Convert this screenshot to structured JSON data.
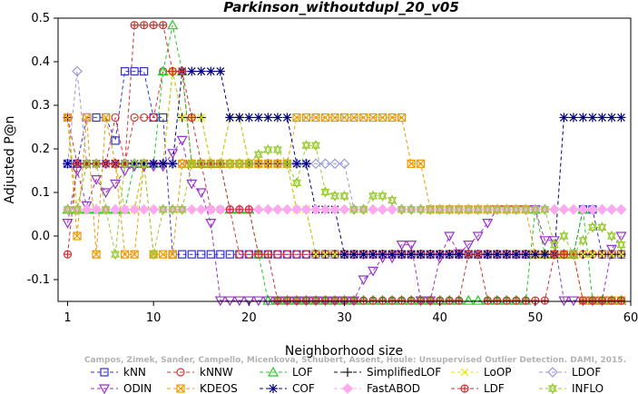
{
  "chart_data": {
    "type": "line",
    "title": "Parkinson_withoutdupl_20_v05",
    "xlabel": "Neighborhood size",
    "ylabel": "Adjusted P@n",
    "xlim": [
      0,
      60
    ],
    "ylim": [
      -0.15,
      0.5
    ],
    "xticks": [
      1,
      10,
      20,
      30,
      40,
      50,
      60
    ],
    "yticks": [
      -0.1,
      0.0,
      0.1,
      0.2,
      0.3,
      0.4,
      0.5
    ],
    "ytick_labels": [
      "-0.1",
      "0.0",
      "0.1",
      "0.2",
      "0.3",
      "0.4",
      "0.5"
    ],
    "grid": false,
    "legend_position": "bottom",
    "credit": "Campos, Zimek, Sander, Campello, Micenkova, Schubert, Assent, Houle: Unsupervised Outlier Detection. DAMI, 2015.",
    "x": [
      1,
      2,
      3,
      4,
      5,
      6,
      7,
      8,
      9,
      10,
      11,
      12,
      13,
      14,
      15,
      16,
      17,
      18,
      19,
      20,
      21,
      22,
      23,
      24,
      25,
      26,
      27,
      28,
      29,
      30,
      31,
      32,
      33,
      34,
      35,
      36,
      37,
      38,
      39,
      40,
      41,
      42,
      43,
      44,
      45,
      46,
      47,
      48,
      49,
      50,
      51,
      52,
      53,
      54,
      55,
      56,
      57,
      58,
      59
    ],
    "series": [
      {
        "name": "kNN",
        "color": "#3333cc",
        "marker": "square",
        "values": [
          0.166,
          0.166,
          0.272,
          0.272,
          0.272,
          0.219,
          0.378,
          0.378,
          0.378,
          0.272,
          0.272,
          -0.042,
          -0.042,
          -0.042,
          -0.042,
          -0.042,
          -0.042,
          -0.042,
          -0.042,
          -0.042,
          -0.042,
          -0.042,
          -0.042,
          -0.042,
          -0.042,
          -0.042,
          -0.042,
          -0.042,
          -0.042,
          -0.042,
          -0.042,
          -0.042,
          -0.042,
          -0.042,
          -0.042,
          -0.042,
          -0.042,
          -0.042,
          -0.042,
          -0.042,
          -0.042,
          -0.042,
          -0.042,
          -0.042,
          -0.042,
          -0.042,
          -0.042,
          -0.042,
          -0.042,
          -0.042,
          -0.042,
          -0.042,
          -0.042,
          -0.042,
          0.061,
          0.061,
          -0.042,
          -0.042,
          -0.042
        ]
      },
      {
        "name": "kNNW",
        "color": "#dd3333",
        "marker": "circle",
        "values": [
          0.272,
          0.166,
          0.166,
          0.166,
          0.166,
          0.272,
          0.166,
          0.272,
          0.272,
          0.272,
          0.378,
          0.378,
          0.378,
          0.166,
          0.166,
          0.061,
          0.061,
          0.061,
          -0.042,
          -0.042,
          -0.042,
          -0.042,
          -0.042,
          -0.042,
          -0.042,
          -0.042,
          -0.042,
          -0.042,
          -0.042,
          -0.042,
          -0.042,
          -0.042,
          -0.042,
          -0.042,
          -0.042,
          -0.042,
          -0.042,
          -0.042,
          -0.042,
          -0.042,
          -0.042,
          -0.042,
          -0.042,
          -0.042,
          -0.042,
          -0.042,
          -0.042,
          -0.042,
          -0.042,
          -0.042,
          -0.042,
          -0.042,
          -0.042,
          -0.042,
          -0.042,
          -0.042,
          -0.042,
          -0.042,
          -0.042
        ]
      },
      {
        "name": "LOF",
        "color": "#22cc22",
        "marker": "triangle",
        "values": [
          0.061,
          0.061,
          0.061,
          0.061,
          0.061,
          0.061,
          0.061,
          0.166,
          0.166,
          0.166,
          0.378,
          0.484,
          0.378,
          0.166,
          0.166,
          0.166,
          0.166,
          0.061,
          0.061,
          0.061,
          -0.042,
          -0.148,
          -0.148,
          -0.148,
          -0.148,
          -0.148,
          -0.148,
          -0.148,
          -0.148,
          -0.148,
          -0.148,
          -0.148,
          -0.148,
          -0.148,
          -0.148,
          -0.148,
          -0.148,
          -0.148,
          -0.148,
          -0.148,
          -0.148,
          -0.148,
          -0.148,
          -0.148,
          -0.148,
          -0.148,
          -0.148,
          -0.148,
          -0.148,
          0.061,
          -0.042,
          -0.042,
          -0.042,
          -0.042,
          0.061,
          -0.148,
          -0.148,
          -0.148,
          -0.148
        ]
      },
      {
        "name": "SimplifiedLOF",
        "color": "#111111",
        "marker": "plus",
        "values": [
          0.272,
          0.061,
          0.166,
          0.166,
          0.166,
          0.166,
          0.061,
          0.061,
          0.166,
          0.166,
          0.166,
          0.378,
          0.272,
          0.272,
          0.272,
          0.166,
          0.166,
          0.272,
          0.272,
          0.166,
          0.166,
          0.166,
          0.166,
          0.166,
          0.061,
          0.061,
          -0.042,
          -0.042,
          -0.042,
          -0.042,
          -0.042,
          -0.042,
          -0.042,
          -0.042,
          -0.042,
          -0.042,
          -0.042,
          -0.042,
          -0.042,
          -0.042,
          -0.042,
          -0.042,
          -0.042,
          -0.042,
          -0.042,
          -0.042,
          -0.042,
          -0.042,
          -0.042,
          -0.042,
          -0.042,
          -0.042,
          -0.042,
          -0.042,
          -0.042,
          -0.042,
          -0.042,
          -0.042,
          -0.042
        ]
      },
      {
        "name": "LoOP",
        "color": "#e6e600",
        "marker": "x",
        "values": [
          0.272,
          0.061,
          0.166,
          0.166,
          0.166,
          0.166,
          0.061,
          0.061,
          0.166,
          0.166,
          0.166,
          0.378,
          0.272,
          0.272,
          0.272,
          0.166,
          0.166,
          0.272,
          0.272,
          0.166,
          0.166,
          0.166,
          0.166,
          0.166,
          0.061,
          0.061,
          -0.042,
          -0.042,
          -0.042,
          -0.042,
          -0.042,
          -0.042,
          -0.042,
          -0.042,
          -0.042,
          -0.042,
          -0.042,
          -0.042,
          -0.042,
          -0.042,
          -0.042,
          -0.042,
          -0.042,
          -0.042,
          -0.042,
          -0.042,
          -0.042,
          -0.042,
          -0.042,
          -0.042,
          -0.042,
          -0.042,
          -0.042,
          -0.042,
          -0.042,
          -0.042,
          -0.042,
          -0.042,
          -0.042
        ]
      },
      {
        "name": "LDOF",
        "color": "#9999dd",
        "marker": "diamond",
        "values": [
          0.166,
          0.378,
          0.166,
          0.166,
          0.166,
          0.166,
          0.166,
          0.166,
          0.166,
          0.166,
          0.166,
          0.166,
          0.166,
          0.166,
          0.166,
          0.166,
          0.166,
          0.166,
          0.166,
          0.166,
          0.166,
          0.166,
          0.166,
          0.166,
          0.166,
          0.166,
          0.166,
          0.166,
          0.166,
          0.166,
          0.061,
          0.061,
          0.061,
          0.061,
          0.061,
          0.061,
          0.061,
          0.061,
          0.061,
          0.061,
          0.061,
          0.061,
          0.061,
          0.061,
          0.061,
          0.061,
          0.061,
          0.061,
          0.061,
          0.061,
          0.061,
          0.061,
          0.061,
          0.061,
          0.061,
          0.061,
          0.061,
          0.061,
          0.061
        ]
      },
      {
        "name": "ODIN",
        "color": "#9933cc",
        "marker": "triangle-down",
        "values": [
          0.03,
          0.15,
          0.07,
          0.13,
          0.1,
          0.12,
          0.15,
          0.16,
          0.16,
          0.16,
          0.16,
          0.19,
          0.22,
          0.12,
          0.1,
          0.03,
          -0.148,
          -0.148,
          -0.148,
          -0.148,
          -0.148,
          -0.148,
          -0.148,
          -0.148,
          -0.148,
          -0.148,
          -0.148,
          -0.148,
          -0.148,
          -0.148,
          -0.148,
          -0.1,
          -0.08,
          -0.05,
          -0.05,
          -0.02,
          -0.02,
          -0.148,
          -0.148,
          -0.05,
          0.0,
          -0.04,
          -0.02,
          0.0,
          0.03,
          0.061,
          0.061,
          0.061,
          0.061,
          0.061,
          -0.01,
          -0.01,
          -0.148,
          -0.148,
          -0.148,
          -0.148,
          -0.148,
          -0.03,
          0.0
        ]
      },
      {
        "name": "KDEOS",
        "color": "#ee9900",
        "marker": "square-x",
        "values": [
          0.272,
          0.0,
          0.272,
          -0.042,
          0.272,
          0.166,
          -0.042,
          -0.042,
          0.166,
          -0.042,
          -0.042,
          -0.042,
          0.166,
          0.166,
          0.166,
          0.166,
          0.166,
          0.166,
          0.166,
          0.166,
          0.166,
          0.166,
          0.166,
          0.166,
          0.272,
          0.272,
          0.272,
          0.272,
          0.272,
          0.272,
          0.272,
          0.272,
          0.272,
          0.272,
          0.272,
          0.272,
          0.166,
          0.166,
          0.061,
          0.061,
          0.061,
          0.061,
          0.061,
          0.061,
          0.061,
          0.061,
          0.061,
          0.061,
          0.061,
          -0.042,
          -0.042,
          -0.042,
          -0.042,
          -0.042,
          -0.148,
          -0.148,
          -0.148,
          -0.148,
          -0.148
        ]
      },
      {
        "name": "COF",
        "color": "#000080",
        "marker": "asterisk",
        "values": [
          0.166,
          0.166,
          0.166,
          0.166,
          0.166,
          0.166,
          0.166,
          0.166,
          0.166,
          0.166,
          0.166,
          0.166,
          0.378,
          0.378,
          0.378,
          0.378,
          0.378,
          0.272,
          0.272,
          0.272,
          0.272,
          0.272,
          0.272,
          0.272,
          0.166,
          0.166,
          0.061,
          0.061,
          0.061,
          -0.042,
          -0.042,
          -0.042,
          -0.042,
          -0.042,
          -0.042,
          -0.042,
          -0.042,
          -0.042,
          -0.042,
          -0.042,
          -0.042,
          -0.042,
          -0.042,
          -0.042,
          -0.042,
          -0.042,
          -0.042,
          -0.042,
          -0.042,
          -0.042,
          -0.042,
          -0.042,
          0.272,
          0.272,
          0.272,
          0.272,
          0.272,
          0.272,
          0.272
        ]
      },
      {
        "name": "FastABOD",
        "color": "#ffaaee",
        "marker": "diamond-filled",
        "values": [
          0.061,
          0.061,
          0.061,
          0.061,
          0.061,
          0.061,
          0.061,
          0.061,
          0.061,
          0.061,
          0.061,
          0.061,
          0.061,
          0.061,
          0.061,
          0.061,
          0.061,
          0.061,
          0.061,
          0.061,
          0.061,
          0.061,
          0.061,
          0.061,
          0.061,
          0.061,
          0.061,
          0.061,
          0.061,
          0.061,
          0.061,
          0.061,
          0.061,
          0.061,
          0.061,
          0.061,
          0.061,
          0.061,
          0.061,
          0.061,
          0.061,
          0.061,
          0.061,
          0.061,
          0.061,
          0.061,
          0.061,
          0.061,
          0.061,
          0.061,
          0.061,
          0.061,
          0.061,
          0.061,
          0.061,
          0.061,
          0.061,
          0.061,
          0.061
        ]
      },
      {
        "name": "LDF",
        "color": "#cc3333",
        "marker": "circle-plus",
        "values": [
          -0.042,
          0.166,
          0.166,
          0.166,
          0.166,
          0.166,
          0.166,
          0.484,
          0.484,
          0.484,
          0.484,
          0.378,
          0.378,
          0.272,
          0.166,
          0.166,
          0.166,
          0.061,
          0.061,
          0.061,
          -0.042,
          -0.042,
          -0.148,
          -0.148,
          -0.148,
          -0.148,
          -0.148,
          -0.148,
          -0.148,
          -0.148,
          -0.148,
          -0.148,
          -0.148,
          -0.148,
          -0.148,
          -0.148,
          -0.148,
          -0.148,
          -0.148,
          -0.148,
          -0.148,
          -0.148,
          -0.042,
          -0.042,
          -0.148,
          -0.148,
          -0.148,
          -0.148,
          -0.148,
          -0.148,
          -0.148,
          -0.042,
          -0.042,
          -0.042,
          -0.148,
          -0.148,
          -0.148,
          -0.148,
          -0.148
        ]
      },
      {
        "name": "INFLO",
        "color": "#99cc33",
        "marker": "star",
        "values": [
          0.061,
          0.061,
          0.166,
          0.166,
          0.061,
          -0.042,
          0.166,
          0.166,
          0.166,
          -0.042,
          0.061,
          0.061,
          0.061,
          0.166,
          0.166,
          0.166,
          0.166,
          0.166,
          0.166,
          0.166,
          0.187,
          0.198,
          0.198,
          0.166,
          0.122,
          0.208,
          0.208,
          0.101,
          0.092,
          0.092,
          0.061,
          0.061,
          0.092,
          0.092,
          0.082,
          0.061,
          0.061,
          0.061,
          0.061,
          0.061,
          0.061,
          0.061,
          0.061,
          0.061,
          0.061,
          0.061,
          0.061,
          0.061,
          0.061,
          0.061,
          0.061,
          -0.02,
          0.0,
          -0.042,
          -0.01,
          0.02,
          0.02,
          0.0,
          -0.02
        ]
      }
    ]
  }
}
